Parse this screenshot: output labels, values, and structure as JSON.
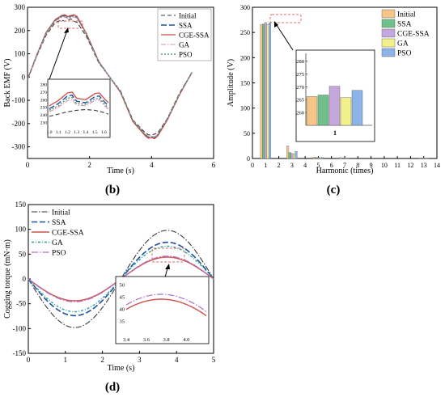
{
  "colors": {
    "initial": "#3a3a3a",
    "ssa": "#1f4e9c",
    "cge_ssa": "#d0504a",
    "ga": "#e08cc4",
    "pso": "#2f8e5a",
    "bar_initial": "#f5c58a",
    "bar_ssa": "#6fc08a",
    "bar_cge_ssa": "#c6a7dc",
    "bar_ga": "#f2f08a",
    "bar_pso": "#8db4e8",
    "highlight": "#e06a6a"
  },
  "chart_data": [
    {
      "id": "b",
      "type": "line",
      "panel_label": "(b)",
      "xlabel": "Time (s)",
      "ylabel": "Back EMF (V)",
      "xlim": [
        0,
        6
      ],
      "ylim": [
        -350,
        300
      ],
      "xticks": [
        0,
        2,
        4,
        6
      ],
      "yticks": [
        -300,
        -200,
        -100,
        0,
        100,
        200,
        300
      ],
      "legend": [
        "Initial",
        "SSA",
        "CGE-SSA",
        "GA",
        "PSO"
      ],
      "legend_position": "top-right",
      "series_description": "single-period back EMF waveform from 0 to 5.3 s",
      "series": [
        {
          "name": "Initial",
          "x": [
            0,
            0.3,
            0.6,
            0.9,
            1.1,
            1.2,
            1.3,
            1.4,
            1.5,
            1.6,
            1.9,
            2.3,
            2.65,
            3.0,
            3.4,
            3.8,
            3.9,
            4.0,
            4.1,
            4.2,
            4.5,
            4.9,
            5.3
          ],
          "y": [
            -10,
            90,
            180,
            235,
            245,
            240,
            245,
            250,
            240,
            235,
            175,
            60,
            0,
            -60,
            -185,
            -240,
            -248,
            -250,
            -245,
            -240,
            -180,
            -70,
            20
          ]
        },
        {
          "name": "SSA",
          "x": [
            0,
            0.3,
            0.6,
            0.9,
            1.1,
            1.2,
            1.3,
            1.4,
            1.5,
            1.6,
            1.9,
            2.3,
            2.65,
            3.0,
            3.4,
            3.8,
            3.9,
            4.0,
            4.1,
            4.2,
            4.5,
            4.9,
            5.3
          ],
          "y": [
            -10,
            95,
            190,
            245,
            262,
            265,
            258,
            262,
            266,
            258,
            185,
            65,
            0,
            -65,
            -190,
            -250,
            -260,
            -258,
            -262,
            -250,
            -185,
            -75,
            20
          ]
        },
        {
          "name": "CGE-SSA",
          "x": [
            0,
            0.3,
            0.6,
            0.9,
            1.1,
            1.2,
            1.3,
            1.4,
            1.5,
            1.6,
            1.9,
            2.3,
            2.65,
            3.0,
            3.4,
            3.8,
            3.9,
            4.0,
            4.1,
            4.2,
            4.5,
            4.9,
            5.3
          ],
          "y": [
            -10,
            95,
            192,
            248,
            265,
            268,
            260,
            265,
            268,
            260,
            187,
            66,
            0,
            -66,
            -192,
            -253,
            -263,
            -260,
            -265,
            -253,
            -187,
            -76,
            20
          ]
        },
        {
          "name": "GA",
          "x": [
            0,
            0.3,
            0.6,
            0.9,
            1.1,
            1.2,
            1.3,
            1.4,
            1.5,
            1.6,
            1.9,
            2.3,
            2.65,
            3.0,
            3.4,
            3.8,
            3.9,
            4.0,
            4.1,
            4.2,
            4.5,
            4.9,
            5.3
          ],
          "y": [
            -10,
            92,
            186,
            242,
            256,
            258,
            252,
            256,
            259,
            252,
            182,
            63,
            0,
            -63,
            -187,
            -246,
            -255,
            -253,
            -256,
            -246,
            -182,
            -73,
            20
          ]
        },
        {
          "name": "PSO",
          "x": [
            0,
            0.3,
            0.6,
            0.9,
            1.1,
            1.2,
            1.3,
            1.4,
            1.5,
            1.6,
            1.9,
            2.3,
            2.65,
            3.0,
            3.4,
            3.8,
            3.9,
            4.0,
            4.1,
            4.2,
            4.5,
            4.9,
            5.3
          ],
          "y": [
            -10,
            94,
            189,
            244,
            260,
            262,
            255,
            260,
            263,
            255,
            184,
            64,
            0,
            -64,
            -189,
            -248,
            -258,
            -256,
            -260,
            -248,
            -184,
            -74,
            20
          ]
        }
      ],
      "inset": {
        "xlim": [
          1.0,
          1.65
        ],
        "ylim": [
          225,
          285
        ],
        "xticks": [
          1.0,
          1.1,
          1.2,
          1.3,
          1.4,
          1.5,
          1.6
        ],
        "xtick_labels": [
          "1.0",
          "1.1",
          "1.2",
          "1.3",
          "1.4",
          "1.5",
          "1.6"
        ],
        "yticks": [
          230,
          240,
          250,
          260,
          270,
          280
        ],
        "series": [
          {
            "name": "Initial",
            "x": [
              1.0,
              1.1,
              1.2,
              1.3,
              1.4,
              1.5,
              1.6,
              1.65
            ],
            "y": [
              238,
              241,
              244,
              246,
              247,
              246,
              243,
              241
            ]
          },
          {
            "name": "SSA",
            "x": [
              1.0,
              1.1,
              1.2,
              1.25,
              1.3,
              1.4,
              1.5,
              1.55,
              1.6,
              1.65
            ],
            "y": [
              248,
              255,
              265,
              266,
              258,
              256,
              264,
              265,
              258,
              252
            ]
          },
          {
            "name": "CGE-SSA",
            "x": [
              1.0,
              1.1,
              1.2,
              1.25,
              1.3,
              1.4,
              1.5,
              1.55,
              1.6,
              1.65
            ],
            "y": [
              252,
              259,
              269,
              270,
              262,
              260,
              268,
              269,
              262,
              256
            ]
          },
          {
            "name": "GA",
            "x": [
              1.0,
              1.1,
              1.2,
              1.25,
              1.3,
              1.4,
              1.5,
              1.55,
              1.6,
              1.65
            ],
            "y": [
              244,
              250,
              259,
              260,
              253,
              252,
              259,
              260,
              253,
              247
            ]
          },
          {
            "name": "PSO",
            "x": [
              1.0,
              1.1,
              1.2,
              1.25,
              1.3,
              1.4,
              1.5,
              1.55,
              1.6,
              1.65
            ],
            "y": [
              246,
              252,
              262,
              263,
              255,
              254,
              261,
              262,
              255,
              249
            ]
          }
        ]
      }
    },
    {
      "id": "c",
      "type": "bar",
      "panel_label": "(c)",
      "xlabel": "Harmonic (times)",
      "ylabel": "Amplitude (V)",
      "xlim": [
        0,
        14
      ],
      "ylim": [
        0,
        300
      ],
      "xticks": [
        0,
        1,
        2,
        3,
        4,
        5,
        6,
        7,
        8,
        9,
        10,
        11,
        12,
        13,
        14
      ],
      "yticks": [
        0,
        50,
        100,
        150,
        200,
        250,
        300
      ],
      "legend": [
        "Initial",
        "SSA",
        "CGE-SSA",
        "GA",
        "PSO"
      ],
      "legend_position": "top-right",
      "categories": [
        1,
        3,
        5,
        7,
        13
      ],
      "series": [
        {
          "name": "Initial",
          "values": [
            266,
            25,
            3,
            2,
            1
          ]
        },
        {
          "name": "SSA",
          "values": [
            267,
            12,
            2,
            1,
            1
          ]
        },
        {
          "name": "CGE-SSA",
          "values": [
            270,
            10,
            2,
            1,
            1
          ]
        },
        {
          "name": "GA",
          "values": [
            266,
            9,
            2,
            1,
            1
          ]
        },
        {
          "name": "PSO",
          "values": [
            269,
            14,
            2,
            1,
            1
          ]
        }
      ],
      "inset": {
        "category_label": "1",
        "ylim": [
          255,
          283
        ],
        "yticks": [
          260,
          265,
          270,
          275,
          280
        ],
        "values": [
          266.2,
          266.8,
          270.2,
          265.8,
          268.6
        ]
      }
    },
    {
      "id": "d",
      "type": "line",
      "panel_label": "(d)",
      "xlabel": "Time (s)",
      "ylabel": "Cogging torque (mN·m)",
      "xlim": [
        0,
        5
      ],
      "ylim": [
        -150,
        150
      ],
      "xticks": [
        0,
        1,
        2,
        3,
        4,
        5
      ],
      "yticks": [
        -150,
        -100,
        -50,
        0,
        50,
        100,
        150
      ],
      "legend": [
        "Initial",
        "SSA",
        "CGE-SSA",
        "GA",
        "PSO"
      ],
      "legend_position": "top-left",
      "series_description": "sinusoid of period 5 s, minimum near 1.25 s, maximum near 3.75 s",
      "series": [
        {
          "name": "Initial",
          "amplitude": 98
        },
        {
          "name": "SSA",
          "amplitude": 74
        },
        {
          "name": "CGE-SSA",
          "amplitude": 44
        },
        {
          "name": "GA",
          "amplitude": 66
        },
        {
          "name": "PSO",
          "amplitude": 46
        }
      ],
      "inset": {
        "xlim": [
          3.4,
          4.2
        ],
        "ylim": [
          30,
          52
        ],
        "xticks": [
          3.4,
          3.6,
          3.8,
          4.0
        ],
        "xtick_labels": [
          "3.4",
          "3.6",
          "3.8",
          "4.0"
        ],
        "yticks": [
          35,
          40,
          45,
          50
        ],
        "ytick_labels": [
          "35",
          "40",
          "45",
          "50"
        ]
      }
    }
  ]
}
